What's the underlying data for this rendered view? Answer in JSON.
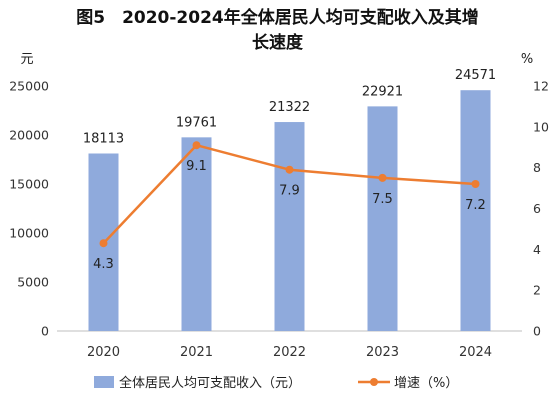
{
  "chart_data": {
    "type": "bar",
    "title_line1": "图5　2020-2024年全体居民人均可支配收入及其增",
    "title_line2": "长速度",
    "categories": [
      "2020",
      "2021",
      "2022",
      "2023",
      "2024"
    ],
    "series": [
      {
        "name": "全体居民人均可支配收入（元）",
        "type": "bar",
        "axis": "left",
        "values": [
          18113,
          19761,
          21322,
          22921,
          24571
        ]
      },
      {
        "name": "增速（%）",
        "type": "line",
        "axis": "right",
        "values": [
          4.3,
          9.1,
          7.9,
          7.5,
          7.2
        ]
      }
    ],
    "left_axis": {
      "label": "元",
      "range": [
        0,
        25000
      ],
      "ticks": [
        0,
        5000,
        10000,
        15000,
        20000,
        25000
      ]
    },
    "right_axis": {
      "label": "%",
      "range": [
        0,
        12
      ],
      "ticks": [
        0,
        2,
        4,
        6,
        8,
        10,
        12
      ]
    },
    "legend_position": "bottom",
    "grid": false,
    "colors": {
      "bar": "#8FAADC",
      "line": "#ED7D31"
    }
  }
}
